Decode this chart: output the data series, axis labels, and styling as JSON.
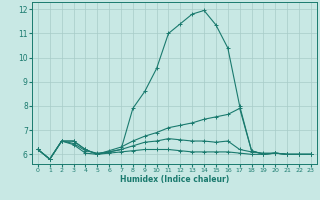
{
  "xlabel": "Humidex (Indice chaleur)",
  "xlim": [
    -0.5,
    23.5
  ],
  "ylim": [
    5.6,
    12.3
  ],
  "yticks": [
    6,
    7,
    8,
    9,
    10,
    11,
    12
  ],
  "xticks": [
    0,
    1,
    2,
    3,
    4,
    5,
    6,
    7,
    8,
    9,
    10,
    11,
    12,
    13,
    14,
    15,
    16,
    17,
    18,
    19,
    20,
    21,
    22,
    23
  ],
  "bg_color": "#c8e8e4",
  "grid_color": "#a8ccc8",
  "line_color": "#1a7a6e",
  "series": [
    {
      "x": [
        0,
        1,
        2,
        3,
        4,
        5,
        6,
        7,
        8,
        9,
        10,
        11,
        12,
        13,
        14,
        15,
        16,
        17,
        18,
        19,
        20,
        21,
        22,
        23
      ],
      "y": [
        6.2,
        5.8,
        6.55,
        6.55,
        6.2,
        6.0,
        6.1,
        6.2,
        7.9,
        8.6,
        9.55,
        11.0,
        11.4,
        11.8,
        11.95,
        11.35,
        10.4,
        8.0,
        6.15,
        6.0,
        6.05,
        6.0,
        6.0,
        6.0
      ]
    },
    {
      "x": [
        0,
        1,
        2,
        3,
        4,
        5,
        6,
        7,
        8,
        9,
        10,
        11,
        12,
        13,
        14,
        15,
        16,
        17,
        18,
        19,
        20,
        21,
        22,
        23
      ],
      "y": [
        6.2,
        5.8,
        6.55,
        6.55,
        6.2,
        6.0,
        6.15,
        6.3,
        6.55,
        6.75,
        6.9,
        7.1,
        7.2,
        7.3,
        7.45,
        7.55,
        7.65,
        7.9,
        6.15,
        6.0,
        6.05,
        6.0,
        6.0,
        6.0
      ]
    },
    {
      "x": [
        0,
        1,
        2,
        3,
        4,
        5,
        6,
        7,
        8,
        9,
        10,
        11,
        12,
        13,
        14,
        15,
        16,
        17,
        18,
        19,
        20,
        21,
        22,
        23
      ],
      "y": [
        6.2,
        5.8,
        6.55,
        6.45,
        6.15,
        6.05,
        6.1,
        6.2,
        6.35,
        6.5,
        6.55,
        6.65,
        6.6,
        6.55,
        6.55,
        6.5,
        6.55,
        6.2,
        6.1,
        6.05,
        6.05,
        6.0,
        6.0,
        6.0
      ]
    },
    {
      "x": [
        0,
        1,
        2,
        3,
        4,
        5,
        6,
        7,
        8,
        9,
        10,
        11,
        12,
        13,
        14,
        15,
        16,
        17,
        18,
        19,
        20,
        21,
        22,
        23
      ],
      "y": [
        6.2,
        5.8,
        6.55,
        6.4,
        6.05,
        6.0,
        6.05,
        6.1,
        6.15,
        6.2,
        6.2,
        6.2,
        6.15,
        6.1,
        6.1,
        6.1,
        6.1,
        6.05,
        6.0,
        6.0,
        6.05,
        6.0,
        6.0,
        6.0
      ]
    }
  ]
}
